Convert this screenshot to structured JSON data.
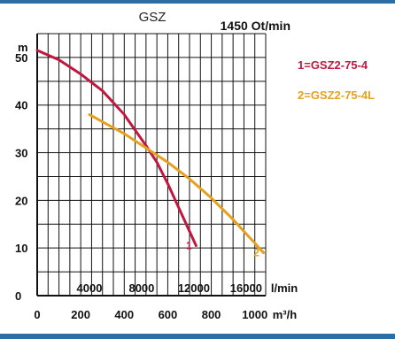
{
  "frame": {
    "band_color": "#2e6da4"
  },
  "chart_data": {
    "type": "line",
    "title": "GSZ",
    "speed_label": "1450 Ot/min",
    "y_axis": {
      "unit": "m",
      "range": [
        0,
        55
      ],
      "ticks": [
        0,
        10,
        20,
        30,
        40,
        50
      ]
    },
    "x_axis_primary": {
      "unit": "m³/h",
      "range": [
        0,
        1050
      ],
      "ticks": [
        0,
        200,
        400,
        600,
        800,
        1000
      ]
    },
    "x_axis_secondary": {
      "unit": "l/min",
      "ticks": [
        4000,
        8000,
        12000,
        16000
      ],
      "tick_positions_m3h": [
        240,
        480,
        720,
        960
      ]
    },
    "grid": true,
    "legend_position": "right",
    "series": [
      {
        "name": "1=GSZ2-75-4",
        "marker": "1",
        "color": "#c0173f",
        "x": [
          0,
          100,
          200,
          300,
          400,
          500,
          550,
          600,
          650,
          700,
          730
        ],
        "y": [
          51.5,
          49.5,
          46.5,
          43,
          38,
          31.5,
          28,
          23.5,
          18.5,
          13.5,
          10.5
        ]
      },
      {
        "name": "2=GSZ2-75-4L",
        "marker": "2",
        "color": "#e6a01e",
        "x": [
          240,
          400,
          500,
          600,
          700,
          800,
          900,
          1000,
          1040
        ],
        "y": [
          38,
          34,
          31,
          28,
          24.5,
          20.5,
          16,
          11,
          9
        ]
      }
    ]
  }
}
